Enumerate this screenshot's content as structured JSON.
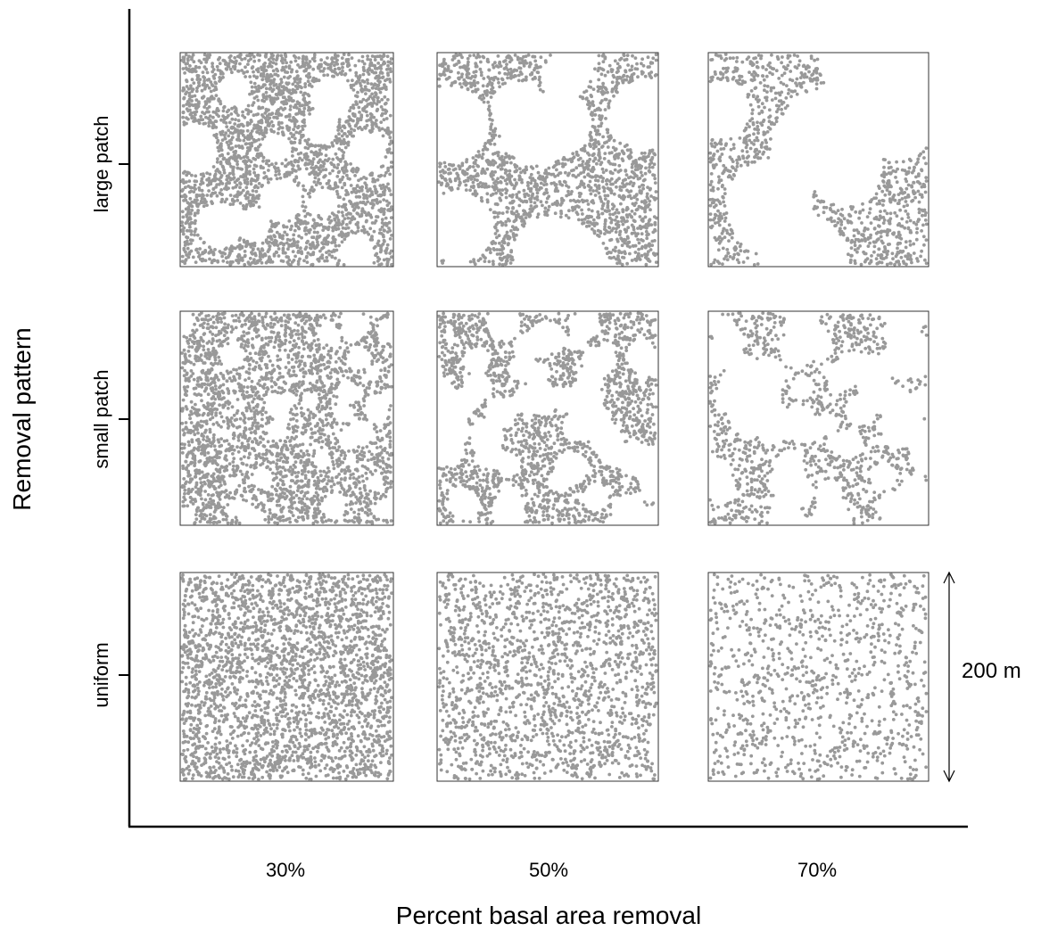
{
  "chart_data": {
    "type": "scatter",
    "title": "",
    "xlabel": "Percent basal area removal",
    "ylabel": "Removal pattern",
    "x_tick_labels": [
      "30%",
      "50%",
      "70%"
    ],
    "y_tick_labels": [
      "large patch",
      "small patch",
      "uniform"
    ],
    "scale_bar_label": "200 m",
    "point_color": "#999999",
    "grid": false,
    "panels": [
      {
        "removal_pattern": "large patch",
        "basal_area_removal": "30%",
        "point_density": "high",
        "gap_structure": "large circular gaps"
      },
      {
        "removal_pattern": "large patch",
        "basal_area_removal": "50%",
        "point_density": "medium",
        "gap_structure": "large circular gaps"
      },
      {
        "removal_pattern": "large patch",
        "basal_area_removal": "70%",
        "point_density": "low",
        "gap_structure": "large circular gaps"
      },
      {
        "removal_pattern": "small patch",
        "basal_area_removal": "30%",
        "point_density": "high",
        "gap_structure": "small circular gaps"
      },
      {
        "removal_pattern": "small patch",
        "basal_area_removal": "50%",
        "point_density": "medium",
        "gap_structure": "small circular gaps"
      },
      {
        "removal_pattern": "small patch",
        "basal_area_removal": "70%",
        "point_density": "low",
        "gap_structure": "small circular gaps"
      },
      {
        "removal_pattern": "uniform",
        "basal_area_removal": "30%",
        "point_density": "high",
        "gap_structure": "uniform thinning"
      },
      {
        "removal_pattern": "uniform",
        "basal_area_removal": "50%",
        "point_density": "medium",
        "gap_structure": "uniform thinning"
      },
      {
        "removal_pattern": "uniform",
        "basal_area_removal": "70%",
        "point_density": "low",
        "gap_structure": "uniform thinning"
      }
    ]
  }
}
